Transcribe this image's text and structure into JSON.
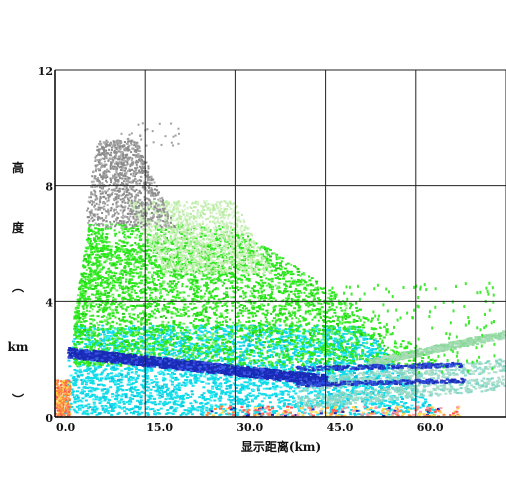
{
  "chart_data": {
    "type": "scatter",
    "title": "",
    "xlabel": "显示距离(km)",
    "ylabel_chars": [
      "高",
      "度",
      "︵",
      "km",
      "︶"
    ],
    "xlim": [
      0,
      75
    ],
    "ylim": [
      0,
      12
    ],
    "x_ticks": [
      {
        "value": 0,
        "label": "0.0"
      },
      {
        "value": 15,
        "label": "15.0"
      },
      {
        "value": 30,
        "label": "30.0"
      },
      {
        "value": 45,
        "label": "45.0"
      },
      {
        "value": 60,
        "label": "60.0"
      },
      {
        "value": 75,
        "label": "75.0"
      }
    ],
    "y_ticks": [
      {
        "value": 0,
        "label": "0"
      },
      {
        "value": 4,
        "label": "4"
      },
      {
        "value": 8,
        "label": "8"
      },
      {
        "value": 12,
        "label": "12"
      }
    ],
    "grid": true,
    "echo_regions": [
      {
        "name": "gray-echo",
        "color": "#8c8c8c",
        "x_range": [
          5,
          20
        ],
        "y_range": [
          6.6,
          9.6
        ]
      },
      {
        "name": "light-green-echo",
        "color": "#b7eba0",
        "x_range": [
          18,
          36
        ],
        "y_range": [
          5.0,
          7.5
        ]
      },
      {
        "name": "green-echo",
        "color": "#2ee81e",
        "x_range": [
          3,
          70
        ],
        "y_range": [
          2.5,
          6.5
        ]
      },
      {
        "name": "cyan-echo",
        "color": "#13dcea",
        "x_range": [
          1,
          65
        ],
        "y_range": [
          0.1,
          3.2
        ]
      },
      {
        "name": "dark-blue-bright-band",
        "color": "#1a2bb8",
        "x_range": [
          2,
          45
        ],
        "y_range": [
          1.1,
          2.3
        ]
      },
      {
        "name": "red-orange-near-surface",
        "color": "#ff8a3c",
        "x_range": [
          0,
          3
        ],
        "y_range": [
          0,
          1.3
        ]
      }
    ],
    "legend": "none"
  }
}
